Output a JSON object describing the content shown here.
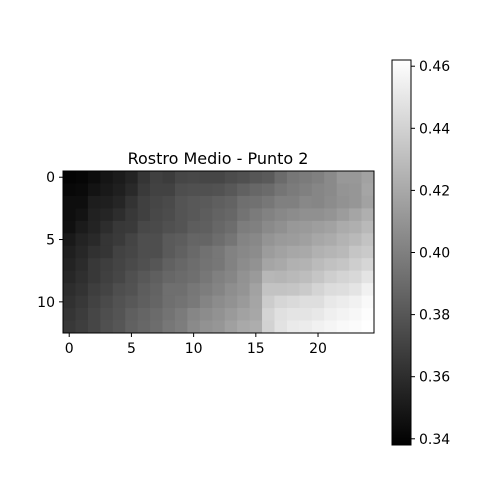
{
  "chart_data": {
    "type": "heatmap",
    "title": "Rostro Medio - Punto 2",
    "colormap": "gray",
    "rows": 13,
    "cols": 25,
    "x_ticks": [
      {
        "value": 0,
        "label": "0"
      },
      {
        "value": 5,
        "label": "5"
      },
      {
        "value": 10,
        "label": "10"
      },
      {
        "value": 15,
        "label": "15"
      },
      {
        "value": 20,
        "label": "20"
      }
    ],
    "y_ticks": [
      {
        "value": 0,
        "label": "0"
      },
      {
        "value": 5,
        "label": "5"
      },
      {
        "value": 10,
        "label": "10"
      }
    ],
    "colorbar": {
      "vmin": 0.338,
      "vmax": 0.462,
      "ticks": [
        {
          "value": 0.34,
          "label": "0.34"
        },
        {
          "value": 0.36,
          "label": "0.36"
        },
        {
          "value": 0.38,
          "label": "0.38"
        },
        {
          "value": 0.4,
          "label": "0.40"
        },
        {
          "value": 0.42,
          "label": "0.42"
        },
        {
          "value": 0.44,
          "label": "0.44"
        },
        {
          "value": 0.46,
          "label": "0.46"
        }
      ]
    },
    "values": [
      [
        0.34,
        0.341,
        0.344,
        0.348,
        0.351,
        0.355,
        0.364,
        0.369,
        0.367,
        0.372,
        0.373,
        0.372,
        0.372,
        0.375,
        0.377,
        0.38,
        0.382,
        0.39,
        0.396,
        0.398,
        0.4,
        0.405,
        0.412,
        0.412,
        0.417
      ],
      [
        0.342,
        0.343,
        0.347,
        0.35,
        0.353,
        0.358,
        0.366,
        0.37,
        0.37,
        0.376,
        0.377,
        0.377,
        0.378,
        0.381,
        0.385,
        0.388,
        0.39,
        0.395,
        0.398,
        0.4,
        0.403,
        0.405,
        0.41,
        0.411,
        0.418
      ],
      [
        0.345,
        0.345,
        0.352,
        0.353,
        0.356,
        0.363,
        0.369,
        0.372,
        0.374,
        0.379,
        0.381,
        0.382,
        0.384,
        0.386,
        0.392,
        0.393,
        0.396,
        0.4,
        0.4,
        0.404,
        0.403,
        0.406,
        0.409,
        0.411,
        0.417
      ],
      [
        0.345,
        0.347,
        0.354,
        0.356,
        0.36,
        0.365,
        0.369,
        0.373,
        0.375,
        0.379,
        0.381,
        0.383,
        0.386,
        0.388,
        0.394,
        0.398,
        0.401,
        0.404,
        0.406,
        0.408,
        0.408,
        0.41,
        0.414,
        0.418,
        0.423
      ],
      [
        0.346,
        0.351,
        0.355,
        0.36,
        0.365,
        0.366,
        0.373,
        0.374,
        0.377,
        0.379,
        0.383,
        0.384,
        0.388,
        0.391,
        0.399,
        0.4,
        0.405,
        0.408,
        0.412,
        0.413,
        0.415,
        0.417,
        0.421,
        0.423,
        0.428
      ],
      [
        0.35,
        0.355,
        0.358,
        0.364,
        0.366,
        0.371,
        0.376,
        0.376,
        0.382,
        0.383,
        0.387,
        0.387,
        0.391,
        0.395,
        0.402,
        0.404,
        0.41,
        0.413,
        0.414,
        0.416,
        0.419,
        0.421,
        0.425,
        0.428,
        0.433
      ],
      [
        0.353,
        0.357,
        0.362,
        0.364,
        0.37,
        0.372,
        0.376,
        0.376,
        0.382,
        0.385,
        0.389,
        0.393,
        0.396,
        0.401,
        0.404,
        0.406,
        0.414,
        0.417,
        0.419,
        0.42,
        0.424,
        0.426,
        0.428,
        0.434,
        0.436
      ],
      [
        0.355,
        0.359,
        0.365,
        0.368,
        0.371,
        0.374,
        0.377,
        0.38,
        0.385,
        0.388,
        0.391,
        0.394,
        0.396,
        0.401,
        0.406,
        0.409,
        0.418,
        0.42,
        0.424,
        0.425,
        0.429,
        0.432,
        0.434,
        0.438,
        0.442
      ],
      [
        0.357,
        0.361,
        0.365,
        0.369,
        0.372,
        0.377,
        0.381,
        0.384,
        0.388,
        0.39,
        0.392,
        0.396,
        0.4,
        0.403,
        0.409,
        0.413,
        0.427,
        0.426,
        0.428,
        0.43,
        0.434,
        0.438,
        0.441,
        0.443,
        0.449
      ],
      [
        0.36,
        0.363,
        0.368,
        0.371,
        0.376,
        0.378,
        0.383,
        0.386,
        0.392,
        0.392,
        0.396,
        0.399,
        0.402,
        0.407,
        0.41,
        0.417,
        0.433,
        0.433,
        0.434,
        0.436,
        0.441,
        0.445,
        0.446,
        0.449,
        0.455
      ],
      [
        0.362,
        0.365,
        0.37,
        0.374,
        0.378,
        0.381,
        0.384,
        0.387,
        0.392,
        0.394,
        0.397,
        0.402,
        0.406,
        0.409,
        0.413,
        0.418,
        0.437,
        0.442,
        0.444,
        0.446,
        0.446,
        0.451,
        0.453,
        0.455,
        0.459
      ],
      [
        0.364,
        0.367,
        0.372,
        0.376,
        0.379,
        0.384,
        0.387,
        0.39,
        0.394,
        0.398,
        0.403,
        0.406,
        0.409,
        0.413,
        0.417,
        0.419,
        0.441,
        0.447,
        0.449,
        0.449,
        0.451,
        0.454,
        0.456,
        0.458,
        0.461
      ],
      [
        0.365,
        0.368,
        0.372,
        0.377,
        0.38,
        0.385,
        0.388,
        0.391,
        0.396,
        0.399,
        0.405,
        0.409,
        0.411,
        0.416,
        0.42,
        0.422,
        0.44,
        0.448,
        0.452,
        0.453,
        0.455,
        0.457,
        0.459,
        0.46,
        0.462
      ]
    ]
  }
}
